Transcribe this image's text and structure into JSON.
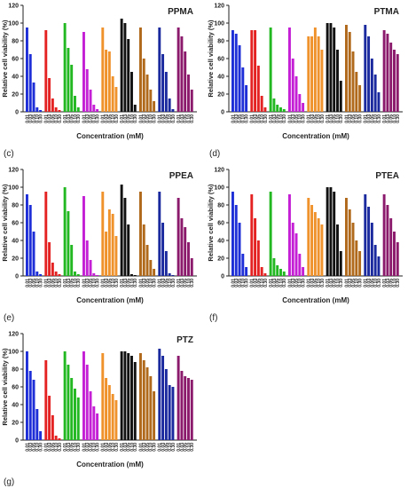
{
  "chart_data": [
    {
      "type": "bar",
      "title": "PPMA",
      "label": "(c)",
      "ylabel": "Relative cell viability (%)",
      "xlabel": "Concentration (mM)",
      "categories": [
        "0.01",
        "0.03",
        "0.05",
        "0.10",
        "0.30"
      ],
      "ylim": [
        0,
        120
      ],
      "yticks": [
        0,
        20,
        40,
        60,
        80,
        100,
        120
      ],
      "series": [
        {
          "color": "#1f2fd8",
          "values": [
            95,
            65,
            33,
            5,
            2
          ]
        },
        {
          "color": "#e42222",
          "values": [
            92,
            38,
            15,
            5,
            2
          ]
        },
        {
          "color": "#22b822",
          "values": [
            100,
            72,
            53,
            18,
            5
          ]
        },
        {
          "color": "#c41fd4",
          "values": [
            90,
            48,
            25,
            8,
            3
          ]
        },
        {
          "color": "#f0922c",
          "values": [
            95,
            70,
            68,
            40,
            28
          ]
        },
        {
          "color": "#111111",
          "values": [
            105,
            100,
            82,
            45,
            8
          ]
        },
        {
          "color": "#b0681a",
          "values": [
            95,
            60,
            42,
            25,
            12
          ]
        },
        {
          "color": "#1a2a9e",
          "values": [
            95,
            65,
            45,
            15,
            3
          ]
        },
        {
          "color": "#8c1a6c",
          "values": [
            95,
            85,
            68,
            42,
            25
          ]
        }
      ]
    },
    {
      "type": "bar",
      "title": "PTMA",
      "label": "(d)",
      "ylabel": "Relative cell viability (%)",
      "xlabel": "Concentration (mM)",
      "categories": [
        "0.01",
        "0.03",
        "0.05",
        "0.10",
        "0.30"
      ],
      "ylim": [
        0,
        120
      ],
      "yticks": [
        0,
        20,
        40,
        60,
        80,
        100,
        120
      ],
      "series": [
        {
          "color": "#1f2fd8",
          "values": [
            92,
            88,
            75,
            50,
            30
          ]
        },
        {
          "color": "#e42222",
          "values": [
            92,
            92,
            52,
            18,
            5
          ]
        },
        {
          "color": "#22b822",
          "values": [
            95,
            15,
            8,
            5,
            3
          ]
        },
        {
          "color": "#c41fd4",
          "values": [
            95,
            60,
            40,
            20,
            10
          ]
        },
        {
          "color": "#f0922c",
          "values": [
            85,
            85,
            95,
            85,
            70
          ]
        },
        {
          "color": "#111111",
          "values": [
            100,
            100,
            95,
            70,
            35
          ]
        },
        {
          "color": "#b0681a",
          "values": [
            98,
            90,
            68,
            45,
            30
          ]
        },
        {
          "color": "#1a2a9e",
          "values": [
            98,
            85,
            60,
            42,
            22
          ]
        },
        {
          "color": "#8c1a6c",
          "values": [
            92,
            88,
            78,
            70,
            65
          ]
        }
      ]
    },
    {
      "type": "bar",
      "title": "PPEA",
      "label": "(e)",
      "ylabel": "Relative cell viability (%)",
      "xlabel": "Concentration (mM)",
      "categories": [
        "0.01",
        "0.03",
        "0.05",
        "0.10",
        "0.30"
      ],
      "ylim": [
        0,
        120
      ],
      "yticks": [
        0,
        20,
        40,
        60,
        80,
        100,
        120
      ],
      "series": [
        {
          "color": "#1f2fd8",
          "values": [
            92,
            80,
            50,
            5,
            2
          ]
        },
        {
          "color": "#e42222",
          "values": [
            95,
            38,
            15,
            5,
            2
          ]
        },
        {
          "color": "#22b822",
          "values": [
            100,
            73,
            35,
            5,
            2
          ]
        },
        {
          "color": "#c41fd4",
          "values": [
            90,
            40,
            18,
            3,
            1
          ]
        },
        {
          "color": "#f0922c",
          "values": [
            95,
            50,
            75,
            70,
            45
          ]
        },
        {
          "color": "#111111",
          "values": [
            103,
            88,
            58,
            2,
            1
          ]
        },
        {
          "color": "#b0681a",
          "values": [
            95,
            58,
            35,
            18,
            8
          ]
        },
        {
          "color": "#1a2a9e",
          "values": [
            95,
            60,
            28,
            3,
            1
          ]
        },
        {
          "color": "#8c1a6c",
          "values": [
            88,
            65,
            55,
            38,
            20
          ]
        }
      ]
    },
    {
      "type": "bar",
      "title": "PTEA",
      "label": "(f)",
      "ylabel": "Relative cell viability (%)",
      "xlabel": "Concentration (mM)",
      "categories": [
        "0.01",
        "0.03",
        "0.05",
        "0.10",
        "0.30"
      ],
      "ylim": [
        0,
        120
      ],
      "yticks": [
        0,
        20,
        40,
        60,
        80,
        100,
        120
      ],
      "series": [
        {
          "color": "#1f2fd8",
          "values": [
            95,
            80,
            60,
            25,
            10
          ]
        },
        {
          "color": "#e42222",
          "values": [
            92,
            65,
            40,
            10,
            3
          ]
        },
        {
          "color": "#22b822",
          "values": [
            95,
            20,
            12,
            8,
            5
          ]
        },
        {
          "color": "#c41fd4",
          "values": [
            92,
            60,
            48,
            25,
            10
          ]
        },
        {
          "color": "#f0922c",
          "values": [
            88,
            80,
            72,
            65,
            58
          ]
        },
        {
          "color": "#111111",
          "values": [
            100,
            100,
            95,
            58,
            28
          ]
        },
        {
          "color": "#b0681a",
          "values": [
            88,
            75,
            60,
            40,
            28
          ]
        },
        {
          "color": "#1a2a9e",
          "values": [
            92,
            78,
            60,
            35,
            22
          ]
        },
        {
          "color": "#8c1a6c",
          "values": [
            92,
            80,
            65,
            50,
            38
          ]
        }
      ]
    },
    {
      "type": "bar",
      "title": "PTZ",
      "label": "(g)",
      "ylabel": "Relative cell viability (%)",
      "xlabel": "Concentration (mM)",
      "categories": [
        "0.01",
        "0.03",
        "0.05",
        "0.10",
        "0.30"
      ],
      "ylim": [
        0,
        120
      ],
      "yticks": [
        0,
        20,
        40,
        60,
        80,
        100,
        120
      ],
      "series": [
        {
          "color": "#1f2fd8",
          "values": [
            100,
            78,
            68,
            35,
            10
          ]
        },
        {
          "color": "#e42222",
          "values": [
            90,
            50,
            28,
            5,
            2
          ]
        },
        {
          "color": "#22b822",
          "values": [
            100,
            85,
            70,
            58,
            48
          ]
        },
        {
          "color": "#c41fd4",
          "values": [
            100,
            85,
            55,
            38,
            30
          ]
        },
        {
          "color": "#f0922c",
          "values": [
            98,
            70,
            62,
            52,
            45
          ]
        },
        {
          "color": "#111111",
          "values": [
            100,
            100,
            98,
            95,
            88
          ]
        },
        {
          "color": "#b0681a",
          "values": [
            98,
            90,
            82,
            72,
            55
          ]
        },
        {
          "color": "#1a2a9e",
          "values": [
            103,
            95,
            80,
            62,
            60
          ]
        },
        {
          "color": "#8c1a6c",
          "values": [
            95,
            78,
            72,
            70,
            68
          ]
        }
      ]
    }
  ]
}
